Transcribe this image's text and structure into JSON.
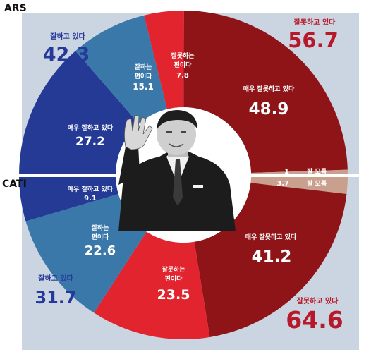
{
  "chart_data": [
    {
      "type": "pie",
      "title": "ARS",
      "total": {
        "label": "잘하고 있다",
        "value": 42.3
      },
      "total_negative": {
        "label": "잘못하고 있다",
        "value": 56.7
      },
      "slices": [
        {
          "label": "매우 잘못하고 있다",
          "value": 48.9,
          "color": "#8e1418"
        },
        {
          "label": "잘 모름",
          "value": 1.0,
          "color": "#c9a08d"
        },
        {
          "label": "매우 잘하고 있다",
          "value": 27.2,
          "color": "#253a95"
        },
        {
          "label": "잘하는 편이다",
          "value": 15.1,
          "color": "#3b78aa"
        },
        {
          "label": "잘못하는 편이다",
          "value": 7.8,
          "color": "#e2242e"
        }
      ]
    },
    {
      "type": "pie",
      "title": "CATI",
      "total": {
        "label": "잘하고 있다",
        "value": 31.7
      },
      "total_negative": {
        "label": "잘못하고 있다",
        "value": 64.6
      },
      "slices": [
        {
          "label": "잘 모름",
          "value": 3.7,
          "color": "#c9a08d"
        },
        {
          "label": "매우 잘못하고 있다",
          "value": 41.2,
          "color": "#8e1418"
        },
        {
          "label": "잘못하는 편이다",
          "value": 23.5,
          "color": "#e2242e"
        },
        {
          "label": "잘하는 편이다",
          "value": 22.6,
          "color": "#3b78aa"
        },
        {
          "label": "매우 잘하고 있다",
          "value": 9.1,
          "color": "#253a95"
        }
      ]
    }
  ],
  "colors": {
    "background": "#cbd5e2",
    "good_total": "#26399a",
    "bad_total": "#b8192a"
  },
  "illustration": "president-photo"
}
